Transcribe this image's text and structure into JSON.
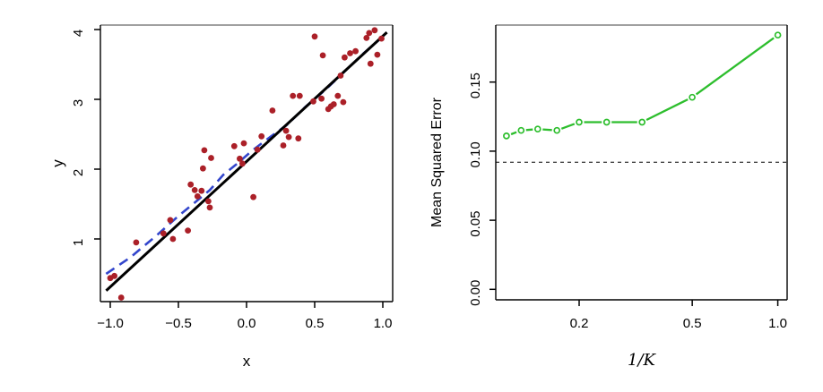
{
  "window": {
    "background": "#ffffff"
  },
  "palette": {
    "scatter_point": "#ab2028",
    "regression_line": "#000000",
    "knn_fit_line": "#3346cc",
    "mse_line": "#2dbe2d",
    "reference_line": "#000000",
    "box_top": "#808080",
    "box": "#000000"
  },
  "chart_data": [
    {
      "type": "scatter",
      "title": "",
      "xlabel": "x",
      "ylabel": "y",
      "xlim": [
        -1.07,
        1.07
      ],
      "ylim": [
        0.1,
        4.05
      ],
      "grid": false,
      "x_axis": {
        "tick_values": [
          -1.0,
          -0.5,
          0.0,
          0.5,
          1.0
        ],
        "tick_labels": [
          "−1.0",
          "−0.5",
          "0.0",
          "0.5",
          "1.0"
        ]
      },
      "y_axis": {
        "tick_values": [
          1,
          2,
          3,
          4
        ],
        "tick_labels": [
          "1",
          "2",
          "3",
          "4"
        ],
        "labels_rotated": true
      },
      "points": [
        [
          -1.0,
          0.44
        ],
        [
          -0.97,
          0.47
        ],
        [
          -0.92,
          0.16
        ],
        [
          -0.81,
          0.95
        ],
        [
          -0.61,
          1.08
        ],
        [
          -0.56,
          1.27
        ],
        [
          -0.54,
          1.0
        ],
        [
          -0.43,
          1.12
        ],
        [
          -0.41,
          1.78
        ],
        [
          -0.38,
          1.7
        ],
        [
          -0.36,
          1.61
        ],
        [
          -0.31,
          2.27
        ],
        [
          -0.32,
          2.01
        ],
        [
          -0.33,
          1.69
        ],
        [
          -0.28,
          1.54
        ],
        [
          -0.27,
          1.45
        ],
        [
          -0.26,
          2.16
        ],
        [
          -0.09,
          2.33
        ],
        [
          -0.05,
          2.15
        ],
        [
          -0.03,
          2.08
        ],
        [
          -0.02,
          2.37
        ],
        [
          0.05,
          1.6
        ],
        [
          0.08,
          2.28
        ],
        [
          0.11,
          2.47
        ],
        [
          0.19,
          2.84
        ],
        [
          0.27,
          2.34
        ],
        [
          0.29,
          2.55
        ],
        [
          0.31,
          2.46
        ],
        [
          0.34,
          3.05
        ],
        [
          0.38,
          2.44
        ],
        [
          0.39,
          3.05
        ],
        [
          0.49,
          2.97
        ],
        [
          0.5,
          3.9
        ],
        [
          0.55,
          3.01
        ],
        [
          0.56,
          3.63
        ],
        [
          0.6,
          2.86
        ],
        [
          0.62,
          2.9
        ],
        [
          0.64,
          2.93
        ],
        [
          0.67,
          3.05
        ],
        [
          0.69,
          3.34
        ],
        [
          0.71,
          2.96
        ],
        [
          0.72,
          3.6
        ],
        [
          0.76,
          3.66
        ],
        [
          0.8,
          3.69
        ],
        [
          0.88,
          3.88
        ],
        [
          0.9,
          3.95
        ],
        [
          0.91,
          3.51
        ],
        [
          0.94,
          3.99
        ],
        [
          0.96,
          3.64
        ],
        [
          0.99,
          3.87
        ]
      ],
      "series": [
        {
          "name": "least-squares-fit",
          "style": "solid",
          "points": [
            [
              -1.03,
              0.26
            ],
            [
              1.03,
              3.96
            ]
          ]
        },
        {
          "name": "knn-fit",
          "style": "dashed",
          "points": [
            [
              -1.03,
              0.5
            ],
            [
              -0.85,
              0.74
            ],
            [
              -0.66,
              1.05
            ],
            [
              -0.5,
              1.33
            ],
            [
              -0.38,
              1.52
            ],
            [
              -0.27,
              1.7
            ],
            [
              -0.17,
              1.92
            ],
            [
              -0.08,
              2.06
            ],
            [
              0.05,
              2.28
            ],
            [
              0.18,
              2.47
            ],
            [
              0.3,
              2.64
            ],
            [
              0.43,
              2.89
            ],
            [
              0.58,
              3.14
            ],
            [
              0.72,
              3.4
            ],
            [
              0.86,
              3.66
            ],
            [
              1.0,
              3.9
            ]
          ]
        }
      ]
    },
    {
      "type": "line",
      "title": "",
      "xlabel": "1/K",
      "ylabel": "Mean Squared Error",
      "xscale": "log",
      "xlim": [
        0.1,
        1.08
      ],
      "ylim": [
        -0.008,
        0.191
      ],
      "grid": false,
      "x_axis": {
        "tick_values": [
          0.2,
          0.5,
          1.0
        ],
        "tick_labels": [
          "0.2",
          "0.5",
          "1.0"
        ]
      },
      "y_axis": {
        "tick_values": [
          0.0,
          0.05,
          0.1,
          0.15
        ],
        "tick_labels": [
          "0.00",
          "0.05",
          "0.10",
          "0.15"
        ],
        "labels_rotated": true
      },
      "series": [
        {
          "name": "knn-test-mse",
          "marker": "open-circle",
          "line_type": "b",
          "x": [
            0.111,
            0.125,
            0.143,
            0.167,
            0.2,
            0.25,
            0.333,
            0.5,
            1.0
          ],
          "k": [
            9,
            8,
            7,
            6,
            5,
            4,
            3,
            2,
            1
          ],
          "y": [
            0.111,
            0.115,
            0.116,
            0.115,
            0.121,
            0.121,
            0.121,
            0.139,
            0.184
          ]
        }
      ],
      "reference_line": {
        "y": 0.092,
        "style": "dashed"
      }
    }
  ]
}
